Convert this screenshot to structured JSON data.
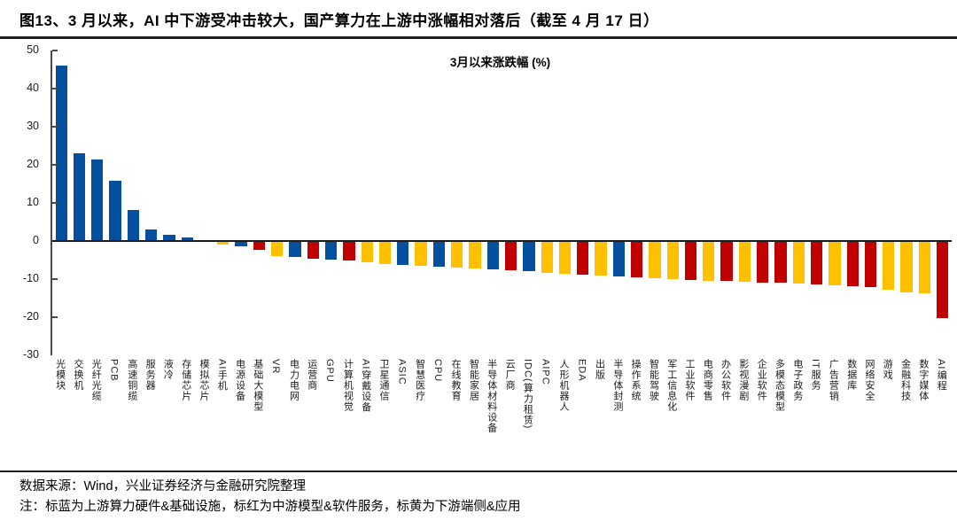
{
  "header": {
    "title": "图13、3 月以来，AI 中下游受冲击较大，国产算力在上游中涨幅相对落后（截至 4 月 17 日）"
  },
  "chart_data": {
    "type": "bar",
    "title": "3月以来涨跌幅 (%)",
    "ylabel": "",
    "xlabel": "",
    "ylim": [
      -30,
      50
    ],
    "yticks": [
      50,
      40,
      30,
      20,
      10,
      0,
      -10,
      -20,
      -30
    ],
    "grid": false,
    "legend_position": "none",
    "groups": {
      "upstream": {
        "meaning": "上游算力硬件&基础设施",
        "color": "#05509E"
      },
      "midstream": {
        "meaning": "中游模型&软件服务",
        "color": "#C00000"
      },
      "downstream": {
        "meaning": "下游端侧&应用",
        "color": "#FFC000"
      }
    },
    "series": [
      {
        "label": "光模块",
        "value": 46.0,
        "group": "upstream"
      },
      {
        "label": "交换机",
        "value": 23.0,
        "group": "upstream"
      },
      {
        "label": "光纤光缆",
        "value": 21.5,
        "group": "upstream"
      },
      {
        "label": "PCB",
        "value": 15.8,
        "group": "upstream"
      },
      {
        "label": "高速铜缆",
        "value": 8.2,
        "group": "upstream"
      },
      {
        "label": "服务器",
        "value": 3.0,
        "group": "upstream"
      },
      {
        "label": "液冷",
        "value": 1.7,
        "group": "upstream"
      },
      {
        "label": "存储芯片",
        "value": 1.0,
        "group": "upstream"
      },
      {
        "label": "模拟芯片",
        "value": -0.3,
        "group": "upstream"
      },
      {
        "label": "AI手机",
        "value": -0.9,
        "group": "downstream"
      },
      {
        "label": "电源设备",
        "value": -1.4,
        "group": "upstream"
      },
      {
        "label": "基础大模型",
        "value": -2.3,
        "group": "midstream"
      },
      {
        "label": "VR",
        "value": -3.9,
        "group": "downstream"
      },
      {
        "label": "电力电网",
        "value": -4.3,
        "group": "upstream"
      },
      {
        "label": "运营商",
        "value": -4.6,
        "group": "midstream"
      },
      {
        "label": "GPU",
        "value": -4.9,
        "group": "upstream"
      },
      {
        "label": "计算机视觉",
        "value": -5.2,
        "group": "midstream"
      },
      {
        "label": "AI穿戴设备",
        "value": -5.6,
        "group": "downstream"
      },
      {
        "label": "卫星通信",
        "value": -6.0,
        "group": "downstream"
      },
      {
        "label": "ASIC",
        "value": -6.3,
        "group": "upstream"
      },
      {
        "label": "智慧医疗",
        "value": -6.5,
        "group": "downstream"
      },
      {
        "label": "CPU",
        "value": -6.7,
        "group": "upstream"
      },
      {
        "label": "在线教育",
        "value": -6.9,
        "group": "downstream"
      },
      {
        "label": "智能家居",
        "value": -7.1,
        "group": "downstream"
      },
      {
        "label": "半导体材料设备",
        "value": -7.4,
        "group": "upstream"
      },
      {
        "label": "云厂商",
        "value": -7.7,
        "group": "midstream"
      },
      {
        "label": "IDC(算力租赁)",
        "value": -8.0,
        "group": "upstream"
      },
      {
        "label": "AIPC",
        "value": -8.3,
        "group": "downstream"
      },
      {
        "label": "人形机器人",
        "value": -8.6,
        "group": "downstream"
      },
      {
        "label": "EDA",
        "value": -8.9,
        "group": "midstream"
      },
      {
        "label": "出版",
        "value": -9.1,
        "group": "downstream"
      },
      {
        "label": "半导体封测",
        "value": -9.3,
        "group": "upstream"
      },
      {
        "label": "操作系统",
        "value": -9.5,
        "group": "midstream"
      },
      {
        "label": "智能驾驶",
        "value": -9.7,
        "group": "downstream"
      },
      {
        "label": "军工信息化",
        "value": -9.9,
        "group": "downstream"
      },
      {
        "label": "工业软件",
        "value": -10.2,
        "group": "midstream"
      },
      {
        "label": "电商零售",
        "value": -10.4,
        "group": "downstream"
      },
      {
        "label": "办公软件",
        "value": -10.5,
        "group": "midstream"
      },
      {
        "label": "影视漫剧",
        "value": -10.7,
        "group": "downstream"
      },
      {
        "label": "企业软件",
        "value": -10.9,
        "group": "midstream"
      },
      {
        "label": "多模态模型",
        "value": -11.0,
        "group": "midstream"
      },
      {
        "label": "电子政务",
        "value": -11.2,
        "group": "downstream"
      },
      {
        "label": "IT服务",
        "value": -11.5,
        "group": "midstream"
      },
      {
        "label": "广告营销",
        "value": -11.7,
        "group": "downstream"
      },
      {
        "label": "数据库",
        "value": -11.9,
        "group": "midstream"
      },
      {
        "label": "网络安全",
        "value": -12.2,
        "group": "midstream"
      },
      {
        "label": "游戏",
        "value": -12.8,
        "group": "downstream"
      },
      {
        "label": "金融科技",
        "value": -13.4,
        "group": "downstream"
      },
      {
        "label": "数字媒体",
        "value": -13.8,
        "group": "downstream"
      },
      {
        "label": "AI编程",
        "value": -20.3,
        "group": "midstream"
      }
    ]
  },
  "footer": {
    "source": "数据来源：Wind，兴业证券经济与金融研究院整理",
    "note": "注：标蓝为上游算力硬件&基础设施，标红为中游模型&软件服务，标黄为下游端侧&应用"
  }
}
